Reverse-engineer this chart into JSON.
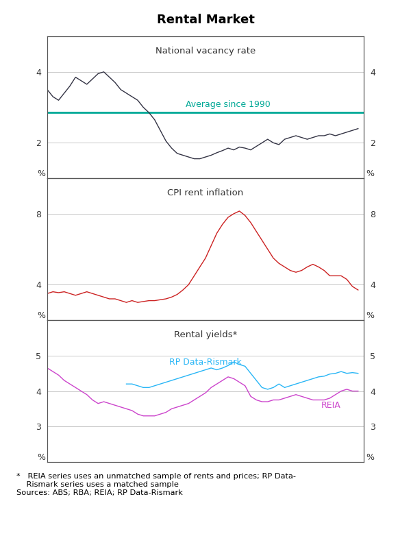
{
  "title": "Rental Market",
  "panel1_title": "National vacancy rate",
  "panel2_title": "CPI rent inflation",
  "panel3_title": "Rental yields*",
  "avg_label": "Average since 1990",
  "rp_label": "RP Data-Rismark",
  "reia_label": "REIA",
  "avg_color": "#00a896",
  "rp_color": "#29b6f6",
  "reia_color": "#cc44cc",
  "line1_color": "#333344",
  "line2_color": "#cc2222",
  "grid_color": "#c8c8c8",
  "border_color": "#555555",
  "panel1_ylim": [
    1,
    5
  ],
  "panel1_yticks": [
    2,
    4
  ],
  "panel1_avg": 2.85,
  "panel2_ylim": [
    2,
    10
  ],
  "panel2_yticks": [
    4,
    8
  ],
  "panel3_ylim": [
    2,
    6
  ],
  "panel3_yticks": [
    3,
    4,
    5
  ],
  "xmin": 1999.5,
  "xmax": 2013.5,
  "xticks": [
    2001,
    2004,
    2007,
    2010,
    2013
  ],
  "vacancy_x": [
    1999.5,
    1999.75,
    2000.0,
    2000.25,
    2000.5,
    2000.75,
    2001.0,
    2001.25,
    2001.5,
    2001.75,
    2002.0,
    2002.25,
    2002.5,
    2002.75,
    2003.0,
    2003.25,
    2003.5,
    2003.75,
    2004.0,
    2004.25,
    2004.5,
    2004.75,
    2005.0,
    2005.25,
    2005.5,
    2005.75,
    2006.0,
    2006.25,
    2006.5,
    2006.75,
    2007.0,
    2007.25,
    2007.5,
    2007.75,
    2008.0,
    2008.25,
    2008.5,
    2008.75,
    2009.0,
    2009.25,
    2009.5,
    2009.75,
    2010.0,
    2010.25,
    2010.5,
    2010.75,
    2011.0,
    2011.25,
    2011.5,
    2011.75,
    2012.0,
    2012.25,
    2012.5,
    2012.75,
    2013.0,
    2013.25
  ],
  "vacancy_y": [
    3.5,
    3.3,
    3.2,
    3.4,
    3.6,
    3.85,
    3.75,
    3.65,
    3.8,
    3.95,
    4.0,
    3.85,
    3.7,
    3.5,
    3.4,
    3.3,
    3.2,
    3.0,
    2.85,
    2.65,
    2.35,
    2.05,
    1.85,
    1.7,
    1.65,
    1.6,
    1.55,
    1.55,
    1.6,
    1.65,
    1.72,
    1.78,
    1.85,
    1.8,
    1.88,
    1.85,
    1.8,
    1.9,
    2.0,
    2.1,
    2.0,
    1.95,
    2.1,
    2.15,
    2.2,
    2.15,
    2.1,
    2.15,
    2.2,
    2.2,
    2.25,
    2.2,
    2.25,
    2.3,
    2.35,
    2.4
  ],
  "cpi_x": [
    1999.5,
    1999.75,
    2000.0,
    2000.25,
    2000.5,
    2000.75,
    2001.0,
    2001.25,
    2001.5,
    2001.75,
    2002.0,
    2002.25,
    2002.5,
    2002.75,
    2003.0,
    2003.25,
    2003.5,
    2003.75,
    2004.0,
    2004.25,
    2004.5,
    2004.75,
    2005.0,
    2005.25,
    2005.5,
    2005.75,
    2006.0,
    2006.25,
    2006.5,
    2006.75,
    2007.0,
    2007.25,
    2007.5,
    2007.75,
    2008.0,
    2008.25,
    2008.5,
    2008.75,
    2009.0,
    2009.25,
    2009.5,
    2009.75,
    2010.0,
    2010.25,
    2010.5,
    2010.75,
    2011.0,
    2011.25,
    2011.5,
    2011.75,
    2012.0,
    2012.25,
    2012.5,
    2012.75,
    2013.0,
    2013.25
  ],
  "cpi_y": [
    3.5,
    3.6,
    3.55,
    3.6,
    3.5,
    3.4,
    3.5,
    3.6,
    3.5,
    3.4,
    3.3,
    3.2,
    3.2,
    3.1,
    3.0,
    3.1,
    3.0,
    3.05,
    3.1,
    3.1,
    3.15,
    3.2,
    3.3,
    3.45,
    3.7,
    4.0,
    4.5,
    5.0,
    5.5,
    6.2,
    6.9,
    7.4,
    7.8,
    8.0,
    8.15,
    7.9,
    7.5,
    7.0,
    6.5,
    6.0,
    5.5,
    5.2,
    5.0,
    4.8,
    4.7,
    4.8,
    5.0,
    5.15,
    5.0,
    4.8,
    4.5,
    4.5,
    4.5,
    4.3,
    3.9,
    3.7
  ],
  "rp_x": [
    2003.0,
    2003.25,
    2003.5,
    2003.75,
    2004.0,
    2004.25,
    2004.5,
    2004.75,
    2005.0,
    2005.25,
    2005.5,
    2005.75,
    2006.0,
    2006.25,
    2006.5,
    2006.75,
    2007.0,
    2007.25,
    2007.5,
    2007.75,
    2008.0,
    2008.25,
    2008.5,
    2008.75,
    2009.0,
    2009.25,
    2009.5,
    2009.75,
    2010.0,
    2010.25,
    2010.5,
    2010.75,
    2011.0,
    2011.25,
    2011.5,
    2011.75,
    2012.0,
    2012.25,
    2012.5,
    2012.75,
    2013.0,
    2013.25
  ],
  "rp_y": [
    4.2,
    4.2,
    4.15,
    4.1,
    4.1,
    4.15,
    4.2,
    4.25,
    4.3,
    4.35,
    4.4,
    4.45,
    4.5,
    4.55,
    4.6,
    4.65,
    4.6,
    4.65,
    4.72,
    4.82,
    4.75,
    4.7,
    4.5,
    4.3,
    4.1,
    4.05,
    4.1,
    4.2,
    4.1,
    4.15,
    4.2,
    4.25,
    4.3,
    4.35,
    4.4,
    4.42,
    4.48,
    4.5,
    4.55,
    4.5,
    4.52,
    4.5
  ],
  "reia_x": [
    1999.5,
    1999.75,
    2000.0,
    2000.25,
    2000.5,
    2000.75,
    2001.0,
    2001.25,
    2001.5,
    2001.75,
    2002.0,
    2002.25,
    2002.5,
    2002.75,
    2003.0,
    2003.25,
    2003.5,
    2003.75,
    2004.0,
    2004.25,
    2004.5,
    2004.75,
    2005.0,
    2005.25,
    2005.5,
    2005.75,
    2006.0,
    2006.25,
    2006.5,
    2006.75,
    2007.0,
    2007.25,
    2007.5,
    2007.75,
    2008.0,
    2008.25,
    2008.5,
    2008.75,
    2009.0,
    2009.25,
    2009.5,
    2009.75,
    2010.0,
    2010.25,
    2010.5,
    2010.75,
    2011.0,
    2011.25,
    2011.5,
    2011.75,
    2012.0,
    2012.25,
    2012.5,
    2012.75,
    2013.0,
    2013.25
  ],
  "reia_y": [
    4.65,
    4.55,
    4.45,
    4.3,
    4.2,
    4.1,
    4.0,
    3.9,
    3.75,
    3.65,
    3.7,
    3.65,
    3.6,
    3.55,
    3.5,
    3.45,
    3.35,
    3.3,
    3.3,
    3.3,
    3.35,
    3.4,
    3.5,
    3.55,
    3.6,
    3.65,
    3.75,
    3.85,
    3.95,
    4.1,
    4.2,
    4.3,
    4.4,
    4.35,
    4.25,
    4.15,
    3.85,
    3.75,
    3.7,
    3.7,
    3.75,
    3.75,
    3.8,
    3.85,
    3.9,
    3.85,
    3.8,
    3.75,
    3.75,
    3.75,
    3.8,
    3.9,
    4.0,
    4.05,
    4.0,
    4.0
  ]
}
